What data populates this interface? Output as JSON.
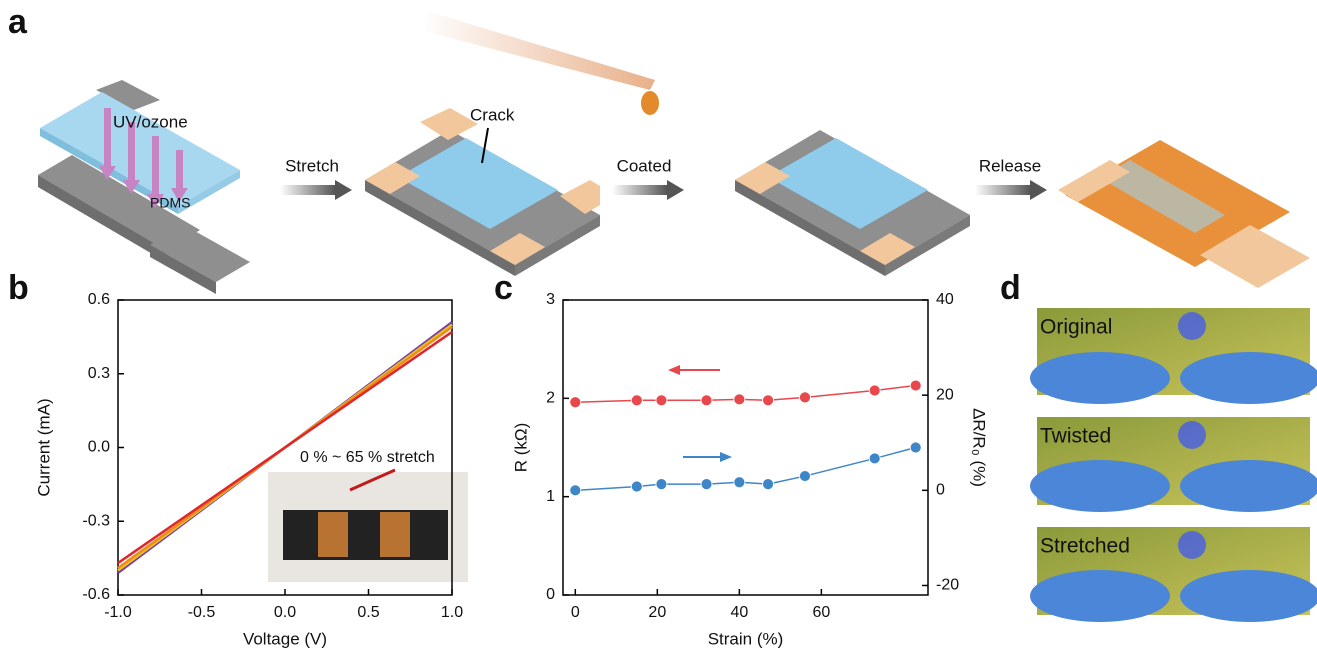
{
  "panel_labels": [
    "a",
    "b",
    "c",
    "d"
  ],
  "diagram": {
    "uv": "UV/ozone",
    "pdms": "PDMS",
    "crack": "Crack",
    "steps": [
      "Stretch",
      "Coated",
      "Release"
    ]
  },
  "photos": [
    "Original",
    "Twisted",
    "Stretched"
  ],
  "chart_data": [
    {
      "type": "line",
      "xlabel": "Voltage (V)",
      "ylabel": "Current (mA)",
      "annotation": "0 % ~ 65 % stretch",
      "x": [
        -1,
        1
      ],
      "series": [
        {
          "color": "#7b3fa6",
          "values": [
            -0.51,
            0.51
          ]
        },
        {
          "color": "#e8c51c",
          "values": [
            -0.5,
            0.5
          ]
        },
        {
          "color": "#f08a1c",
          "values": [
            -0.49,
            0.49
          ]
        },
        {
          "color": "#e0262a",
          "values": [
            -0.47,
            0.47
          ]
        }
      ],
      "xlim": [
        -1,
        1
      ],
      "ylim": [
        -0.6,
        0.6
      ],
      "xticks": [
        {
          "value": -1,
          "label": "-1.0"
        },
        -0.5,
        {
          "value": 0,
          "label": "0.0"
        },
        0.5,
        {
          "value": 1,
          "label": "1.0"
        }
      ],
      "yticks": [
        -0.6,
        -0.3,
        {
          "value": 0,
          "label": "0.0"
        },
        0.3,
        0.6
      ]
    },
    {
      "type": "line",
      "markers": true,
      "xlabel": "Strain (%)",
      "ylabel": "R (kΩ)",
      "y2label": "ΔR/R₀ (%)",
      "x": [
        0,
        15,
        21,
        32,
        40,
        47,
        56,
        73,
        83
      ],
      "series": [
        {
          "color": "#e8474c",
          "values": [
            1.96,
            1.98,
            1.98,
            1.98,
            1.99,
            1.98,
            2.01,
            2.08,
            2.13
          ]
        },
        {
          "color": "#3f86c9",
          "axis": "y2",
          "values": [
            0,
            0.8,
            1.3,
            1.3,
            1.7,
            1.3,
            3,
            6.7,
            9
          ]
        }
      ],
      "xlim": [
        -3,
        86
      ],
      "ylim": [
        0,
        3
      ],
      "y2lim": [
        -22,
        40
      ],
      "xticks": [
        0,
        20,
        40,
        60
      ],
      "yticks": [
        0,
        1,
        2,
        3
      ],
      "y2ticks": [
        -20,
        0,
        20,
        40
      ]
    }
  ]
}
